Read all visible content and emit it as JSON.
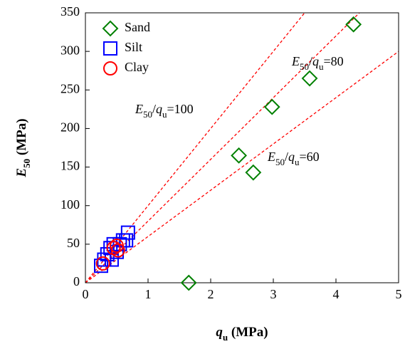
{
  "chart_data": {
    "type": "scatter",
    "x_label_parts": [
      "q",
      "u",
      " (MPa)"
    ],
    "y_label_parts": [
      "E",
      "50",
      " (MPa)"
    ],
    "xlim": [
      0,
      5
    ],
    "xticks": [
      0,
      1,
      2,
      3,
      4,
      5
    ],
    "ylim": [
      0,
      350
    ],
    "yticks": [
      0,
      50,
      100,
      150,
      200,
      250,
      300,
      350
    ],
    "legend": "upper left",
    "series": [
      {
        "name": "Sand",
        "marker": "diamond",
        "color": "#008000",
        "x": [
          1.65,
          2.45,
          2.68,
          2.98,
          3.58,
          4.28
        ],
        "values": [
          0,
          165,
          143,
          228,
          265,
          335
        ]
      },
      {
        "name": "Silt",
        "marker": "square",
        "color": "#0000ff",
        "x": [
          0.25,
          0.3,
          0.35,
          0.4,
          0.42,
          0.45,
          0.5,
          0.55,
          0.6,
          0.65,
          0.68
        ],
        "values": [
          22,
          30,
          37,
          45,
          30,
          50,
          40,
          50,
          55,
          55,
          65
        ]
      },
      {
        "name": "Clay",
        "marker": "circle",
        "color": "#ff0000",
        "x": [
          0.28,
          0.45,
          0.5,
          0.52
        ],
        "values": [
          25,
          45,
          48,
          42
        ]
      }
    ],
    "reference_lines": [
      {
        "slope": 100,
        "color": "#ff0000",
        "label_parts": [
          "E",
          "50",
          "/",
          "q",
          "u",
          "=100"
        ]
      },
      {
        "slope": 80,
        "color": "#ff0000",
        "label_parts": [
          "E",
          "50",
          "/",
          "q",
          "u",
          "=80"
        ]
      },
      {
        "slope": 60,
        "color": "#ff0000",
        "label_parts": [
          "E",
          "50",
          "/",
          "q",
          "u",
          "=60"
        ]
      }
    ]
  }
}
